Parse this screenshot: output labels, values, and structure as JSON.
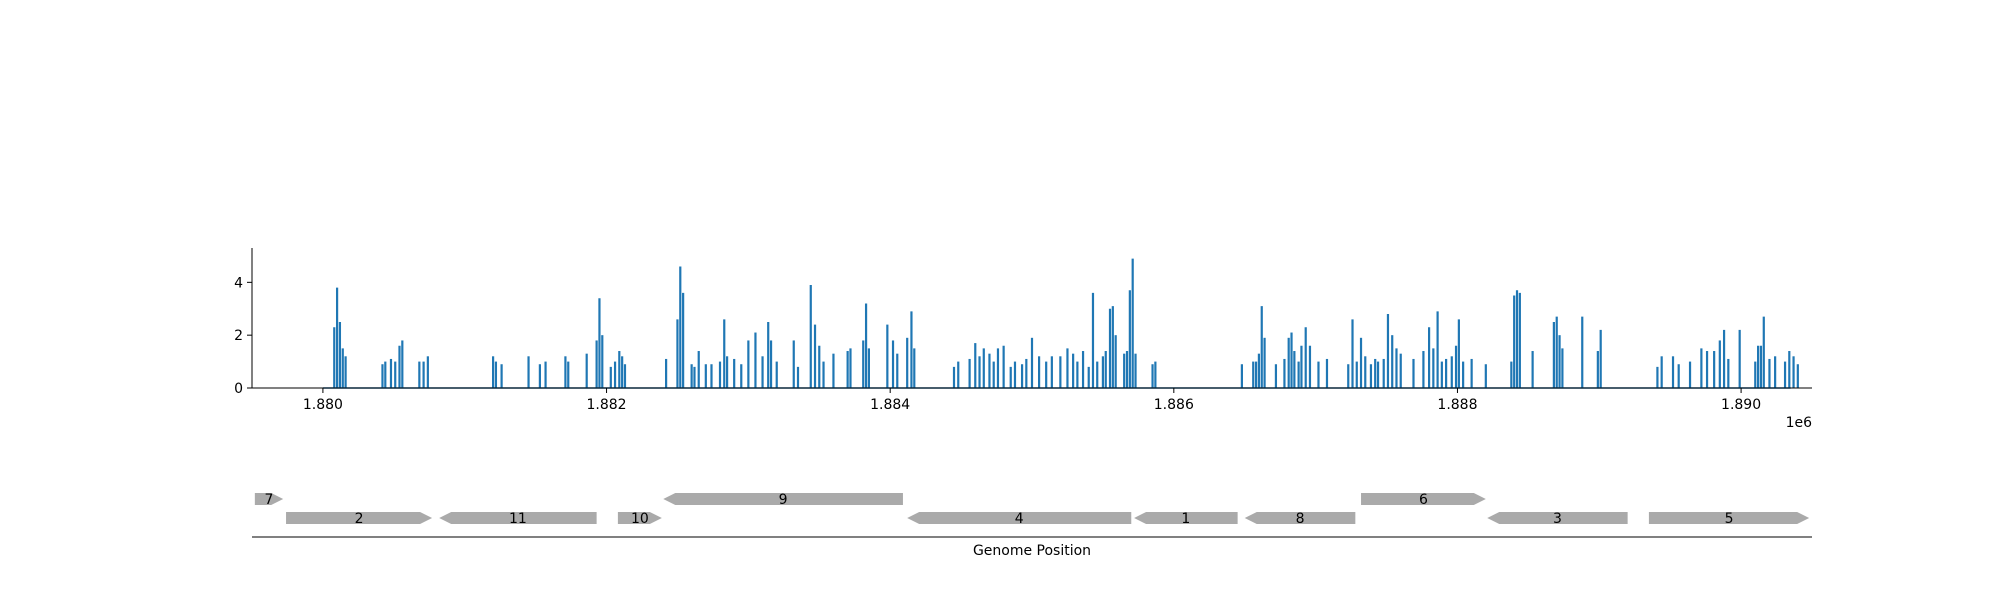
{
  "chart_data": [
    {
      "type": "bar",
      "title": "",
      "xlabel": "",
      "ylabel": "",
      "x_offset_label": "1e6",
      "xlim": [
        1879500,
        1890500
      ],
      "ylim": [
        0,
        5.3
      ],
      "x_ticks": [
        1880000,
        1882000,
        1884000,
        1886000,
        1888000,
        1890000
      ],
      "x_tick_labels": [
        "1.880",
        "1.882",
        "1.884",
        "1.886",
        "1.888",
        "1.890"
      ],
      "y_ticks": [
        0,
        2,
        4
      ],
      "y_tick_labels": [
        "0",
        "2",
        "4"
      ],
      "color": "#1f77b4",
      "grid": false,
      "legend": "none",
      "series": [
        {
          "values": [
            [
              1880080,
              2.3
            ],
            [
              1880100,
              3.8
            ],
            [
              1880120,
              2.5
            ],
            [
              1880140,
              1.5
            ],
            [
              1880160,
              1.2
            ],
            [
              1880420,
              0.9
            ],
            [
              1880440,
              1.0
            ],
            [
              1880480,
              1.1
            ],
            [
              1880510,
              1.0
            ],
            [
              1880540,
              1.6
            ],
            [
              1880560,
              1.8
            ],
            [
              1880680,
              1.0
            ],
            [
              1880710,
              1.0
            ],
            [
              1880740,
              1.2
            ],
            [
              1881200,
              1.2
            ],
            [
              1881220,
              1.0
            ],
            [
              1881260,
              0.9
            ],
            [
              1881450,
              1.2
            ],
            [
              1881530,
              0.9
            ],
            [
              1881570,
              1.0
            ],
            [
              1881710,
              1.2
            ],
            [
              1881730,
              1.0
            ],
            [
              1881860,
              1.3
            ],
            [
              1881930,
              1.8
            ],
            [
              1881950,
              3.4
            ],
            [
              1881970,
              2.0
            ],
            [
              1882030,
              0.8
            ],
            [
              1882060,
              1.0
            ],
            [
              1882090,
              1.4
            ],
            [
              1882110,
              1.2
            ],
            [
              1882130,
              0.9
            ],
            [
              1882420,
              1.1
            ],
            [
              1882500,
              2.6
            ],
            [
              1882520,
              4.6
            ],
            [
              1882540,
              3.6
            ],
            [
              1882600,
              0.9
            ],
            [
              1882620,
              0.8
            ],
            [
              1882650,
              1.4
            ],
            [
              1882700,
              0.9
            ],
            [
              1882740,
              0.9
            ],
            [
              1882800,
              1.0
            ],
            [
              1882830,
              2.6
            ],
            [
              1882850,
              1.2
            ],
            [
              1882900,
              1.1
            ],
            [
              1882950,
              0.9
            ],
            [
              1883000,
              1.8
            ],
            [
              1883050,
              2.1
            ],
            [
              1883100,
              1.2
            ],
            [
              1883140,
              2.5
            ],
            [
              1883160,
              1.8
            ],
            [
              1883200,
              1.0
            ],
            [
              1883320,
              1.8
            ],
            [
              1883350,
              0.8
            ],
            [
              1883440,
              3.9
            ],
            [
              1883470,
              2.4
            ],
            [
              1883500,
              1.6
            ],
            [
              1883530,
              1.0
            ],
            [
              1883600,
              1.3
            ],
            [
              1883700,
              1.4
            ],
            [
              1883720,
              1.5
            ],
            [
              1883810,
              1.8
            ],
            [
              1883830,
              3.2
            ],
            [
              1883850,
              1.5
            ],
            [
              1883980,
              2.4
            ],
            [
              1884020,
              1.8
            ],
            [
              1884050,
              1.3
            ],
            [
              1884120,
              1.9
            ],
            [
              1884150,
              2.9
            ],
            [
              1884170,
              1.5
            ],
            [
              1884450,
              0.8
            ],
            [
              1884480,
              1.0
            ],
            [
              1884560,
              1.1
            ],
            [
              1884600,
              1.7
            ],
            [
              1884630,
              1.2
            ],
            [
              1884660,
              1.5
            ],
            [
              1884700,
              1.3
            ],
            [
              1884730,
              1.0
            ],
            [
              1884760,
              1.5
            ],
            [
              1884800,
              1.6
            ],
            [
              1884850,
              0.8
            ],
            [
              1884880,
              1.0
            ],
            [
              1884930,
              0.9
            ],
            [
              1884960,
              1.1
            ],
            [
              1885000,
              1.9
            ],
            [
              1885050,
              1.2
            ],
            [
              1885100,
              1.0
            ],
            [
              1885140,
              1.2
            ],
            [
              1885200,
              1.2
            ],
            [
              1885250,
              1.5
            ],
            [
              1885290,
              1.3
            ],
            [
              1885320,
              1.0
            ],
            [
              1885360,
              1.4
            ],
            [
              1885400,
              0.8
            ],
            [
              1885430,
              3.6
            ],
            [
              1885460,
              1.0
            ],
            [
              1885500,
              1.2
            ],
            [
              1885520,
              1.4
            ],
            [
              1885550,
              3.0
            ],
            [
              1885570,
              3.1
            ],
            [
              1885590,
              2.0
            ],
            [
              1885650,
              1.3
            ],
            [
              1885670,
              1.4
            ],
            [
              1885690,
              3.7
            ],
            [
              1885710,
              4.9
            ],
            [
              1885730,
              1.3
            ],
            [
              1885850,
              0.9
            ],
            [
              1885870,
              1.0
            ],
            [
              1886480,
              0.9
            ],
            [
              1886560,
              1.0
            ],
            [
              1886580,
              1.0
            ],
            [
              1886600,
              1.3
            ],
            [
              1886620,
              3.1
            ],
            [
              1886640,
              1.9
            ],
            [
              1886720,
              0.9
            ],
            [
              1886780,
              1.1
            ],
            [
              1886810,
              1.9
            ],
            [
              1886830,
              2.1
            ],
            [
              1886850,
              1.4
            ],
            [
              1886880,
              1.0
            ],
            [
              1886900,
              1.6
            ],
            [
              1886930,
              2.3
            ],
            [
              1886960,
              1.6
            ],
            [
              1887020,
              1.0
            ],
            [
              1887080,
              1.1
            ],
            [
              1887230,
              0.9
            ],
            [
              1887260,
              2.6
            ],
            [
              1887290,
              1.0
            ],
            [
              1887320,
              1.9
            ],
            [
              1887350,
              1.2
            ],
            [
              1887390,
              0.9
            ],
            [
              1887420,
              1.1
            ],
            [
              1887440,
              1.0
            ],
            [
              1887480,
              1.1
            ],
            [
              1887510,
              2.8
            ],
            [
              1887540,
              2.0
            ],
            [
              1887570,
              1.5
            ],
            [
              1887600,
              1.3
            ],
            [
              1887690,
              1.1
            ],
            [
              1887760,
              1.4
            ],
            [
              1887800,
              2.3
            ],
            [
              1887830,
              1.5
            ],
            [
              1887860,
              2.9
            ],
            [
              1887890,
              1.0
            ],
            [
              1887920,
              1.1
            ],
            [
              1887960,
              1.2
            ],
            [
              1887990,
              1.6
            ],
            [
              1888010,
              2.6
            ],
            [
              1888040,
              1.0
            ],
            [
              1888100,
              1.1
            ],
            [
              1888200,
              0.9
            ],
            [
              1888380,
              1.0
            ],
            [
              1888400,
              3.5
            ],
            [
              1888420,
              3.7
            ],
            [
              1888440,
              3.6
            ],
            [
              1888530,
              1.4
            ],
            [
              1888680,
              2.5
            ],
            [
              1888700,
              2.7
            ],
            [
              1888720,
              2.0
            ],
            [
              1888740,
              1.5
            ],
            [
              1888880,
              2.7
            ],
            [
              1888990,
              1.4
            ],
            [
              1889010,
              2.2
            ],
            [
              1889410,
              0.8
            ],
            [
              1889440,
              1.2
            ],
            [
              1889520,
              1.2
            ],
            [
              1889560,
              0.9
            ],
            [
              1889640,
              1.0
            ],
            [
              1889720,
              1.5
            ],
            [
              1889760,
              1.4
            ],
            [
              1889810,
              1.4
            ],
            [
              1889850,
              1.8
            ],
            [
              1889880,
              2.2
            ],
            [
              1889910,
              1.1
            ],
            [
              1889990,
              2.2
            ],
            [
              1890100,
              1.0
            ],
            [
              1890120,
              1.6
            ],
            [
              1890140,
              1.6
            ],
            [
              1890160,
              2.7
            ],
            [
              1890200,
              1.1
            ],
            [
              1890240,
              1.2
            ],
            [
              1890310,
              1.0
            ],
            [
              1890340,
              1.4
            ],
            [
              1890370,
              1.2
            ],
            [
              1890400,
              0.9
            ]
          ]
        }
      ]
    },
    {
      "type": "gene-map",
      "xlabel": "Genome Position",
      "color": "#aaaaaa",
      "xlim": [
        1879500,
        1890500
      ],
      "genes": [
        {
          "label": "7",
          "start": 1879520,
          "end": 1879720,
          "strand": "+",
          "row": "upper"
        },
        {
          "label": "2",
          "start": 1879740,
          "end": 1880770,
          "strand": "+",
          "row": "lower"
        },
        {
          "label": "11",
          "start": 1880820,
          "end": 1881930,
          "strand": "-",
          "row": "lower"
        },
        {
          "label": "10",
          "start": 1882080,
          "end": 1882390,
          "strand": "+",
          "row": "lower"
        },
        {
          "label": "9",
          "start": 1882400,
          "end": 1884090,
          "strand": "-",
          "row": "upper"
        },
        {
          "label": "4",
          "start": 1884120,
          "end": 1885700,
          "strand": "-",
          "row": "lower"
        },
        {
          "label": "1",
          "start": 1885720,
          "end": 1886450,
          "strand": "-",
          "row": "lower"
        },
        {
          "label": "8",
          "start": 1886500,
          "end": 1887280,
          "strand": "-",
          "row": "lower"
        },
        {
          "label": "6",
          "start": 1887320,
          "end": 1888200,
          "strand": "+",
          "row": "upper"
        },
        {
          "label": "3",
          "start": 1888210,
          "end": 1889200,
          "strand": "-",
          "row": "lower"
        },
        {
          "label": "5",
          "start": 1889350,
          "end": 1890480,
          "strand": "+",
          "row": "lower"
        }
      ]
    }
  ]
}
